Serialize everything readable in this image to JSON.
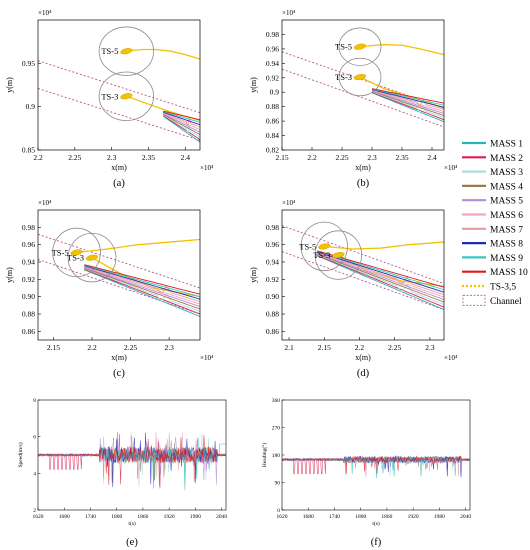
{
  "figure": {
    "legend": {
      "entries": [
        {
          "name": "MASS 1",
          "color": "#2ab3b0",
          "style": "solid"
        },
        {
          "name": "MASS 2",
          "color": "#d8204f",
          "style": "solid"
        },
        {
          "name": "MASS 3",
          "color": "#a8dde0",
          "style": "solid"
        },
        {
          "name": "MASS 4",
          "color": "#9b7a4a",
          "style": "solid"
        },
        {
          "name": "MASS 5",
          "color": "#b58ad8",
          "style": "solid"
        },
        {
          "name": "MASS 6",
          "color": "#f2a6c2",
          "style": "solid"
        },
        {
          "name": "MASS 7",
          "color": "#e89aa0",
          "style": "solid"
        },
        {
          "name": "MASS 8",
          "color": "#1c2bb8",
          "style": "solid"
        },
        {
          "name": "MASS 9",
          "color": "#38c6c0",
          "style": "solid"
        },
        {
          "name": "MASS 10",
          "color": "#e01818",
          "style": "solid"
        },
        {
          "name": "TS-3,5",
          "color": "#f2c200",
          "style": "dotted"
        },
        {
          "name": "Channel",
          "color": "#c0508a",
          "style": "box-dashed"
        }
      ]
    }
  },
  "chart_data": [
    {
      "type": "line",
      "panel_label": "(a)",
      "xlabel": "x(m)",
      "ylabel": "y(m)",
      "x_exponent": "×10⁴",
      "y_exponent": "×10⁴",
      "xlim": [
        2.2,
        2.42
      ],
      "ylim": [
        0.85,
        1.0
      ],
      "xticks": [
        "2.2",
        "2.25",
        "2.3",
        "2.35",
        "2.4"
      ],
      "yticks": [
        "0.85",
        "0.9",
        "0.95"
      ],
      "ytick_values": [
        0.85,
        0.9,
        0.95
      ],
      "channel": [
        {
          "x": [
            2.2,
            2.42
          ],
          "y": [
            0.953,
            0.893
          ]
        },
        {
          "x": [
            2.2,
            2.42
          ],
          "y": [
            0.921,
            0.861
          ]
        }
      ],
      "targets": [
        {
          "name": "TS-5",
          "x": 2.32,
          "y": 0.964,
          "radius_x": 0.037,
          "radius_y": 0.028
        },
        {
          "name": "TS-3",
          "x": 2.32,
          "y": 0.912,
          "radius_x": 0.037,
          "radius_y": 0.028
        }
      ],
      "ts_tracks": [
        {
          "x": [
            2.32,
            2.34,
            2.36,
            2.38,
            2.4,
            2.42
          ],
          "y": [
            0.964,
            0.966,
            0.966,
            0.964,
            0.96,
            0.955
          ]
        },
        {
          "x": [
            2.32,
            2.35,
            2.38,
            2.42
          ],
          "y": [
            0.912,
            0.903,
            0.894,
            0.884
          ]
        }
      ],
      "mass_tracks": {
        "x_start": 2.37,
        "x_end": 2.42,
        "y_start": 0.892,
        "y_end": 0.872
      }
    },
    {
      "type": "line",
      "panel_label": "(b)",
      "xlabel": "x(m)",
      "ylabel": "y(m)",
      "x_exponent": "×10⁴",
      "y_exponent": "×10⁴",
      "xlim": [
        2.15,
        2.42
      ],
      "ylim": [
        0.82,
        1.0
      ],
      "xticks": [
        "2.15",
        "2.2",
        "2.25",
        "2.3",
        "2.35",
        "2.4"
      ],
      "yticks": [
        "0.82",
        "0.84",
        "0.86",
        "0.88",
        "0.9",
        "0.92",
        "0.94",
        "0.96",
        "0.98"
      ],
      "ytick_values": [
        0.82,
        0.84,
        0.86,
        0.88,
        0.9,
        0.92,
        0.94,
        0.96,
        0.98
      ],
      "channel": [
        {
          "x": [
            2.15,
            2.42
          ],
          "y": [
            0.956,
            0.878
          ]
        },
        {
          "x": [
            2.15,
            2.42
          ],
          "y": [
            0.932,
            0.852
          ]
        }
      ],
      "targets": [
        {
          "name": "TS-5",
          "x": 2.28,
          "y": 0.963,
          "radius_x": 0.035,
          "radius_y": 0.026
        },
        {
          "name": "TS-3",
          "x": 2.28,
          "y": 0.921,
          "radius_x": 0.035,
          "radius_y": 0.026
        }
      ],
      "ts_tracks": [
        {
          "x": [
            2.28,
            2.32,
            2.35,
            2.38,
            2.42
          ],
          "y": [
            0.963,
            0.966,
            0.965,
            0.96,
            0.952
          ]
        },
        {
          "x": [
            2.28,
            2.32,
            2.37,
            2.42
          ],
          "y": [
            0.921,
            0.905,
            0.892,
            0.878
          ]
        }
      ],
      "mass_tracks": {
        "x_start": 2.3,
        "x_end": 2.42,
        "y_start": 0.902,
        "y_end": 0.872
      }
    },
    {
      "type": "line",
      "panel_label": "(c)",
      "xlabel": "x(m)",
      "ylabel": "y(m)",
      "x_exponent": "×10⁴",
      "y_exponent": "×10⁴",
      "xlim": [
        2.13,
        2.34
      ],
      "ylim": [
        0.85,
        1.0
      ],
      "xticks": [
        "2.15",
        "2.2",
        "2.25",
        "2.3"
      ],
      "yticks": [
        "0.86",
        "0.88",
        "0.90",
        "0.92",
        "0.94",
        "0.96",
        "0.98"
      ],
      "ytick_values": [
        0.86,
        0.88,
        0.9,
        0.92,
        0.94,
        0.96,
        0.98
      ],
      "channel": [
        {
          "x": [
            2.13,
            2.34
          ],
          "y": [
            0.972,
            0.91
          ]
        },
        {
          "x": [
            2.13,
            2.34
          ],
          "y": [
            0.943,
            0.88
          ]
        }
      ],
      "targets": [
        {
          "name": "TS-5",
          "x": 2.18,
          "y": 0.951,
          "radius_x": 0.031,
          "radius_y": 0.028
        },
        {
          "name": "TS-3",
          "x": 2.2,
          "y": 0.945,
          "radius_x": 0.031,
          "radius_y": 0.028
        }
      ],
      "ts_tracks": [
        {
          "x": [
            2.18,
            2.22,
            2.26,
            2.3,
            2.34
          ],
          "y": [
            0.951,
            0.955,
            0.96,
            0.963,
            0.966
          ]
        },
        {
          "x": [
            2.2,
            2.24,
            2.28,
            2.34
          ],
          "y": [
            0.945,
            0.925,
            0.91,
            0.9
          ]
        }
      ],
      "mass_tracks": {
        "x_start": 2.19,
        "x_end": 2.34,
        "y_start": 0.934,
        "y_end": 0.89
      }
    },
    {
      "type": "line",
      "panel_label": "(d)",
      "xlabel": "x(m)",
      "ylabel": "y(m)",
      "x_exponent": "×10⁴",
      "y_exponent": "×10⁴",
      "xlim": [
        2.09,
        2.32
      ],
      "ylim": [
        0.85,
        1.0
      ],
      "xticks": [
        "2.1",
        "2.15",
        "2.2",
        "2.25",
        "2.3"
      ],
      "yticks": [
        "0.86",
        "0.88",
        "0.90",
        "0.92",
        "0.94",
        "0.96",
        "0.98"
      ],
      "ytick_values": [
        0.86,
        0.88,
        0.9,
        0.92,
        0.94,
        0.96,
        0.98
      ],
      "channel": [
        {
          "x": [
            2.09,
            2.32
          ],
          "y": [
            0.982,
            0.915
          ]
        },
        {
          "x": [
            2.09,
            2.32
          ],
          "y": [
            0.952,
            0.885
          ]
        }
      ],
      "targets": [
        {
          "name": "TS-5",
          "x": 2.15,
          "y": 0.958,
          "radius_x": 0.033,
          "radius_y": 0.028
        },
        {
          "name": "TS-3",
          "x": 2.17,
          "y": 0.948,
          "radius_x": 0.033,
          "radius_y": 0.028
        }
      ],
      "ts_tracks": [
        {
          "x": [
            2.15,
            2.19,
            2.23,
            2.27,
            2.32
          ],
          "y": [
            0.958,
            0.955,
            0.956,
            0.96,
            0.963
          ]
        },
        {
          "x": [
            2.17,
            2.21,
            2.26,
            2.32
          ],
          "y": [
            0.948,
            0.93,
            0.918,
            0.912
          ]
        }
      ],
      "mass_tracks": {
        "x_start": 2.14,
        "x_end": 2.32,
        "y_start": 0.95,
        "y_end": 0.898
      }
    },
    {
      "type": "line",
      "panel_label": "(e)",
      "xlabel": "t(s)",
      "ylabel": "Speed(m/s)",
      "xlim": [
        1620,
        2050
      ],
      "ylim": [
        2,
        8
      ],
      "xticks": [
        "1620",
        "1680",
        "1740",
        "1800",
        "1860",
        "1920",
        "1980",
        "2040"
      ],
      "xtick_values": [
        1620,
        1680,
        1740,
        1800,
        1860,
        1920,
        1980,
        2040
      ],
      "yticks": [
        "2",
        "4",
        "6",
        "8"
      ],
      "ytick_values": [
        2,
        4,
        6,
        8
      ],
      "baseline": 5.0
    },
    {
      "type": "line",
      "panel_label": "(f)",
      "xlabel": "t(s)",
      "ylabel": "Heading(°)",
      "xlim": [
        1620,
        2050
      ],
      "ylim": [
        0,
        360
      ],
      "xticks": [
        "1620",
        "1680",
        "1740",
        "1800",
        "1860",
        "1920",
        "1980",
        "2040"
      ],
      "xtick_values": [
        1620,
        1680,
        1740,
        1800,
        1860,
        1920,
        1980,
        2040
      ],
      "yticks": [
        "0",
        "90",
        "180",
        "270",
        "360"
      ],
      "ytick_values": [
        0,
        90,
        180,
        270,
        360
      ],
      "baseline": 165
    }
  ]
}
